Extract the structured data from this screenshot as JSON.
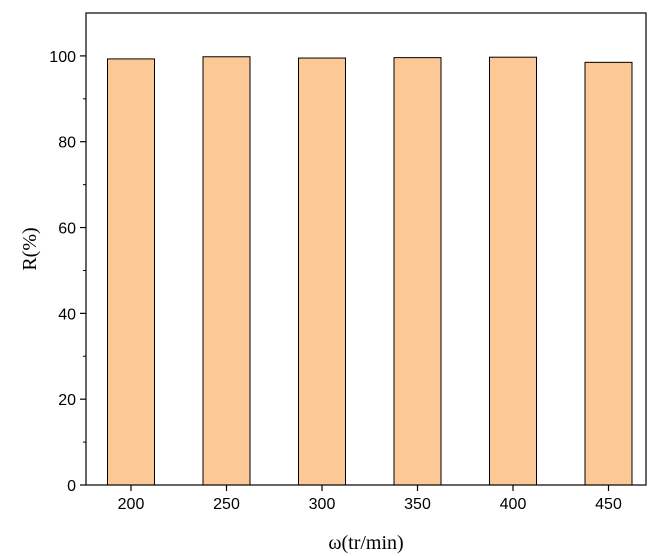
{
  "chart_data": {
    "type": "bar",
    "title": "",
    "xlabel": "ω(tr/min)",
    "ylabel": "R(%)",
    "categories": [
      "200",
      "250",
      "300",
      "350",
      "400",
      "450"
    ],
    "values": [
      99.3,
      99.8,
      99.5,
      99.6,
      99.7,
      98.5
    ],
    "ylim": [
      0,
      110
    ],
    "yticks": [
      0,
      20,
      40,
      60,
      80,
      100
    ],
    "grid": false,
    "legend": "none",
    "bar_color": "#FBC896",
    "bar_edge_color": "#000000"
  }
}
